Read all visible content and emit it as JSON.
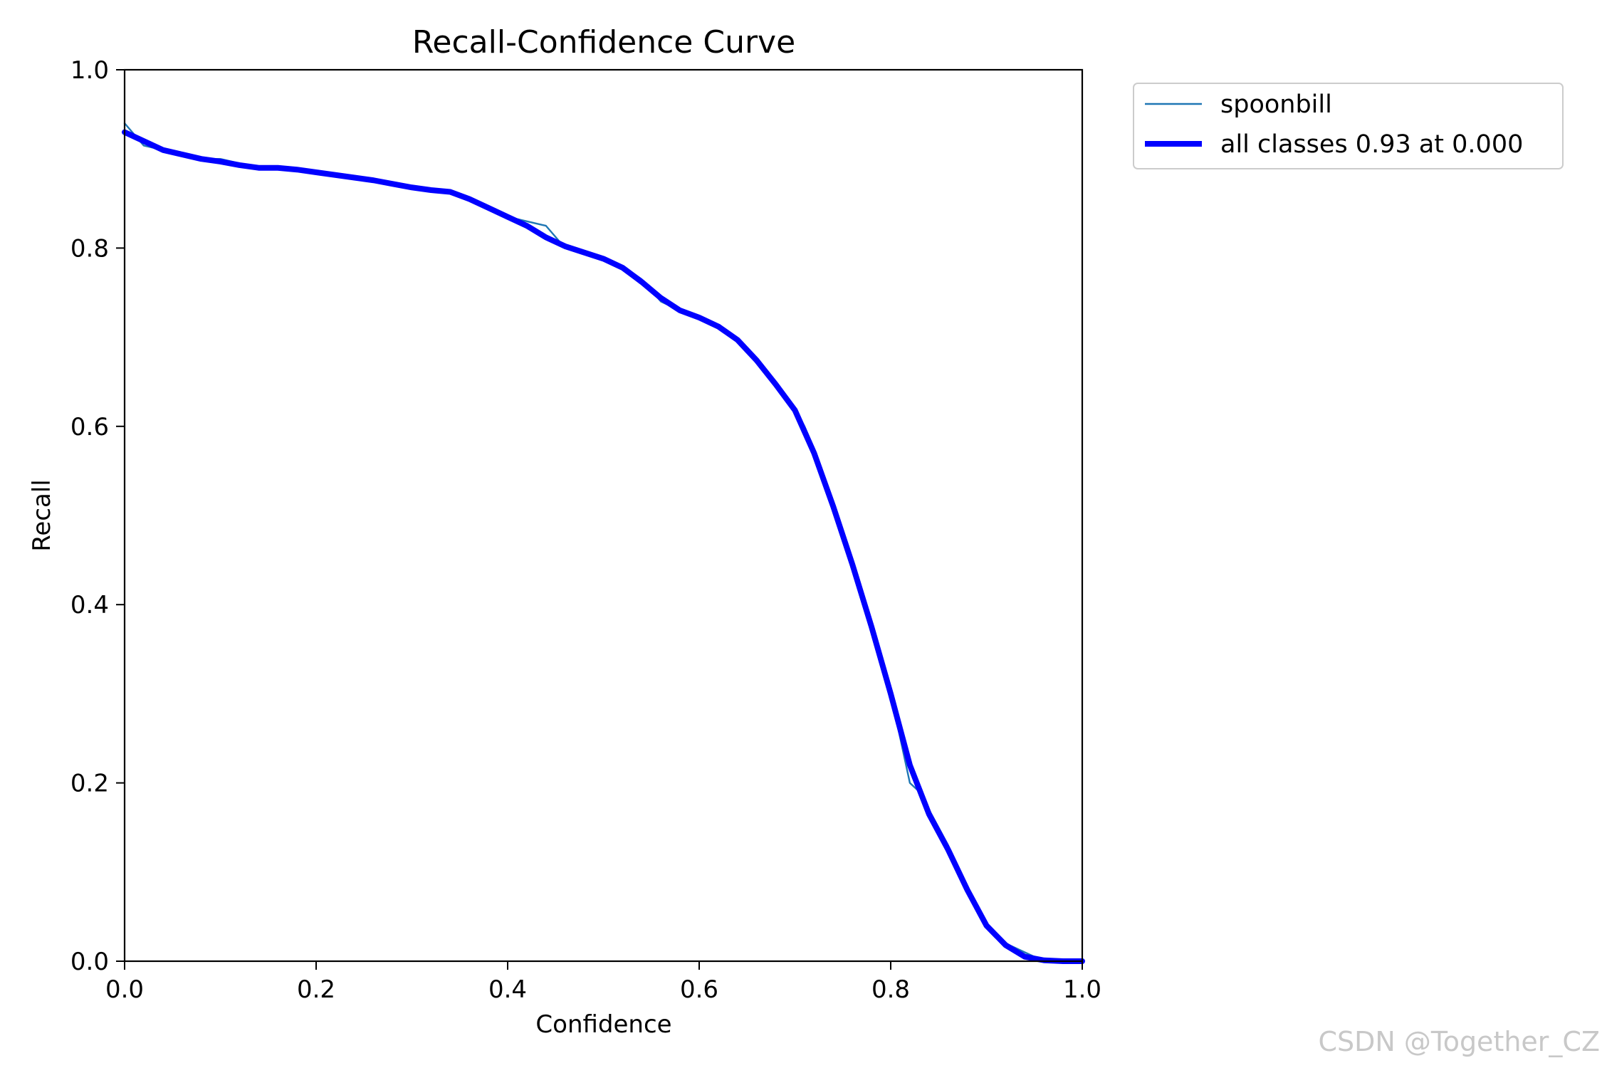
{
  "chart_data": {
    "type": "line",
    "title": "Recall-Confidence Curve",
    "xlabel": "Confidence",
    "ylabel": "Recall",
    "xlim": [
      0,
      1
    ],
    "ylim": [
      0,
      1
    ],
    "xticks": [
      "0.0",
      "0.2",
      "0.4",
      "0.6",
      "0.8",
      "1.0"
    ],
    "yticks": [
      "0.0",
      "0.2",
      "0.4",
      "0.6",
      "0.8",
      "1.0"
    ],
    "grid": false,
    "legend_position": "outside-top-right",
    "series": [
      {
        "name": "spoonbill",
        "color": "#1f77b4",
        "x": [
          0.0,
          0.02,
          0.04,
          0.06,
          0.08,
          0.1,
          0.12,
          0.14,
          0.16,
          0.18,
          0.2,
          0.22,
          0.24,
          0.26,
          0.28,
          0.3,
          0.32,
          0.34,
          0.36,
          0.38,
          0.4,
          0.42,
          0.44,
          0.46,
          0.48,
          0.5,
          0.52,
          0.54,
          0.56,
          0.58,
          0.6,
          0.62,
          0.63,
          0.64,
          0.66,
          0.68,
          0.7,
          0.71,
          0.72,
          0.74,
          0.76,
          0.77,
          0.78,
          0.8,
          0.82,
          0.83,
          0.84,
          0.86,
          0.88,
          0.9,
          0.91,
          0.92,
          0.94,
          0.96,
          1.0
        ],
        "y": [
          0.94,
          0.915,
          0.91,
          0.905,
          0.9,
          0.9,
          0.895,
          0.89,
          0.89,
          0.89,
          0.885,
          0.88,
          0.88,
          0.875,
          0.87,
          0.87,
          0.865,
          0.865,
          0.855,
          0.845,
          0.835,
          0.83,
          0.825,
          0.8,
          0.795,
          0.79,
          0.78,
          0.765,
          0.74,
          0.73,
          0.72,
          0.71,
          0.705,
          0.695,
          0.675,
          0.645,
          0.62,
          0.6,
          0.575,
          0.51,
          0.44,
          0.41,
          0.37,
          0.3,
          0.2,
          0.19,
          0.17,
          0.13,
          0.08,
          0.04,
          0.03,
          0.02,
          0.01,
          0.0,
          0.0
        ]
      },
      {
        "name": "all classes 0.93 at 0.000",
        "color": "#0000ff",
        "x": [
          0.0,
          0.02,
          0.04,
          0.06,
          0.08,
          0.1,
          0.12,
          0.14,
          0.16,
          0.18,
          0.2,
          0.22,
          0.24,
          0.26,
          0.28,
          0.3,
          0.32,
          0.34,
          0.36,
          0.38,
          0.4,
          0.42,
          0.44,
          0.46,
          0.48,
          0.5,
          0.52,
          0.54,
          0.56,
          0.58,
          0.6,
          0.62,
          0.64,
          0.66,
          0.68,
          0.7,
          0.72,
          0.74,
          0.76,
          0.78,
          0.8,
          0.82,
          0.84,
          0.86,
          0.88,
          0.9,
          0.92,
          0.94,
          0.96,
          0.98,
          1.0
        ],
        "y": [
          0.93,
          0.92,
          0.91,
          0.905,
          0.9,
          0.897,
          0.893,
          0.89,
          0.89,
          0.888,
          0.885,
          0.882,
          0.879,
          0.876,
          0.872,
          0.868,
          0.865,
          0.863,
          0.855,
          0.845,
          0.835,
          0.825,
          0.812,
          0.802,
          0.795,
          0.788,
          0.778,
          0.762,
          0.744,
          0.73,
          0.722,
          0.712,
          0.697,
          0.674,
          0.647,
          0.618,
          0.57,
          0.51,
          0.445,
          0.375,
          0.3,
          0.22,
          0.165,
          0.125,
          0.08,
          0.04,
          0.018,
          0.005,
          0.001,
          0.0,
          0.0
        ]
      }
    ]
  },
  "watermark": "CSDN @Together_CZ"
}
